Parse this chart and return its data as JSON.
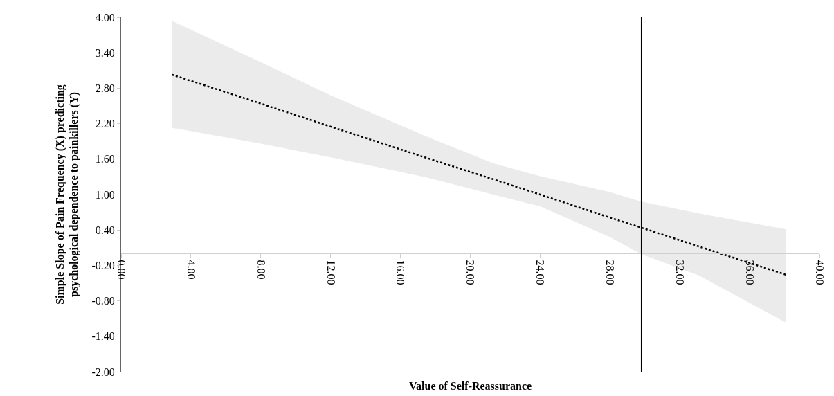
{
  "chart_data": {
    "type": "line",
    "xlabel": "Value of Self-Reassurance",
    "ylabel": "Simple Slope of Pain Frequency (X) predicting\npsychological dependence to painkillers (Y)",
    "xlim": [
      0,
      40
    ],
    "xticks": [
      {
        "value": 0,
        "label": "0.00"
      },
      {
        "value": 4,
        "label": "4.00"
      },
      {
        "value": 8,
        "label": "8.00"
      },
      {
        "value": 12,
        "label": "12.00"
      },
      {
        "value": 16,
        "label": "16.00"
      },
      {
        "value": 20,
        "label": "20.00"
      },
      {
        "value": 24,
        "label": "24.00"
      },
      {
        "value": 28,
        "label": "28.00"
      },
      {
        "value": 32,
        "label": "32.00"
      },
      {
        "value": 36,
        "label": "36.00"
      },
      {
        "value": 40,
        "label": "40.00"
      }
    ],
    "ylim": [
      -2,
      4
    ],
    "yticks": [
      {
        "value": -2,
        "label": "-2.00"
      },
      {
        "value": -1.4,
        "label": "-1.40"
      },
      {
        "value": -0.8,
        "label": "-0.80"
      },
      {
        "value": -0.2,
        "label": "-0.20"
      },
      {
        "value": 0.4,
        "label": "0.40"
      },
      {
        "value": 1,
        "label": "1.00"
      },
      {
        "value": 1.6,
        "label": "1.60"
      },
      {
        "value": 2.2,
        "label": "2.20"
      },
      {
        "value": 2.8,
        "label": "2.80"
      },
      {
        "value": 3.4,
        "label": "3.40"
      },
      {
        "value": 4,
        "label": "4.00"
      }
    ],
    "line_style": "dotted",
    "marker": "none",
    "series": [
      {
        "color": "#000000",
        "x": [
          2.9,
          8,
          12,
          17.5,
          21.3,
          24,
          28,
          29.8,
          33.1,
          38.1
        ],
        "values": [
          3.03,
          2.54,
          2.15,
          1.62,
          1.26,
          1.0,
          0.61,
          0.44,
          0.12,
          -0.36
        ],
        "upper": [
          3.94,
          3.24,
          2.68,
          1.98,
          1.53,
          1.31,
          1.04,
          0.88,
          0.68,
          0.41
        ],
        "lower": [
          2.13,
          1.86,
          1.63,
          1.29,
          1.0,
          0.8,
          0.28,
          -0.01,
          -0.37,
          -1.17
        ]
      }
    ],
    "ref_lines": [
      {
        "axis": "x",
        "value": 29.8,
        "color": "#000000",
        "line_style": "solid"
      }
    ]
  }
}
